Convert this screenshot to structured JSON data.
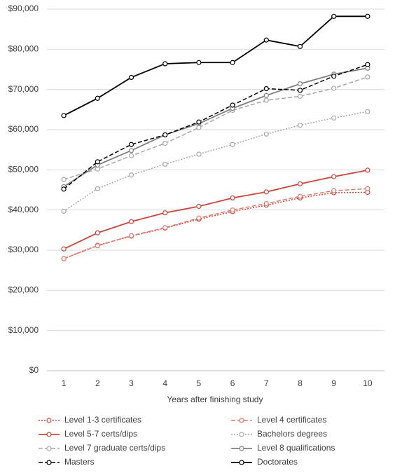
{
  "chart_data": {
    "type": "line",
    "x_label": "Years after finishing study",
    "categories": [
      "1",
      "2",
      "3",
      "4",
      "5",
      "6",
      "7",
      "8",
      "9",
      "10"
    ],
    "ylim": [
      0,
      90000
    ],
    "yticks": [
      {
        "value": 0,
        "label": "$0"
      },
      {
        "value": 10000,
        "label": "$10,000"
      },
      {
        "value": 20000,
        "label": "$20,000"
      },
      {
        "value": 30000,
        "label": "$30,000"
      },
      {
        "value": 40000,
        "label": "$40,000"
      },
      {
        "value": 50000,
        "label": "$50,000"
      },
      {
        "value": 60000,
        "label": "$60,000"
      },
      {
        "value": 70000,
        "label": "$70,000"
      },
      {
        "value": 80000,
        "label": "$80,000"
      },
      {
        "value": 90000,
        "label": "$90,000"
      }
    ],
    "grid": true,
    "legend": "bottom",
    "series": [
      {
        "name": "Level 1-3 certificates",
        "color": "#c9453a",
        "dash": "dotted",
        "values": [
          27900,
          31200,
          33500,
          35500,
          37700,
          39600,
          41200,
          43000,
          44300,
          44400
        ]
      },
      {
        "name": "Level 4 certificates",
        "color": "#e0786b",
        "dash": "dashed",
        "values": [
          27900,
          31100,
          33600,
          35600,
          38000,
          40000,
          41600,
          43400,
          44800,
          45300
        ]
      },
      {
        "name": "Level 5-7 certs/dips",
        "color": "#c9453a",
        "dash": "solid",
        "values": [
          30300,
          34300,
          37100,
          39300,
          40900,
          43000,
          44500,
          46500,
          48300,
          49900
        ]
      },
      {
        "name": "Bachelors degrees",
        "color": "#a6a6a6",
        "dash": "dotted",
        "values": [
          39700,
          45300,
          48700,
          51400,
          53900,
          56300,
          58900,
          61100,
          62900,
          64500
        ]
      },
      {
        "name": "Level 7 graduate certs/dips",
        "color": "#a6a6a6",
        "dash": "dashed",
        "values": [
          47600,
          50200,
          53500,
          56600,
          60500,
          64800,
          67300,
          68300,
          70300,
          73100
        ]
      },
      {
        "name": "Level 8 qualifications",
        "color": "#7f7f7f",
        "dash": "solid",
        "values": [
          45800,
          51200,
          54800,
          58700,
          61500,
          65300,
          68500,
          71400,
          73800,
          75300
        ]
      },
      {
        "name": "Masters",
        "color": "#000000",
        "dash": "dashed",
        "values": [
          45200,
          52000,
          56300,
          58700,
          61900,
          66100,
          70200,
          69800,
          73300,
          76200
        ]
      },
      {
        "name": "Doctorates",
        "color": "#000000",
        "dash": "solid",
        "values": [
          63500,
          67800,
          73000,
          76400,
          76700,
          76700,
          82300,
          80700,
          88200,
          88200
        ]
      }
    ]
  }
}
